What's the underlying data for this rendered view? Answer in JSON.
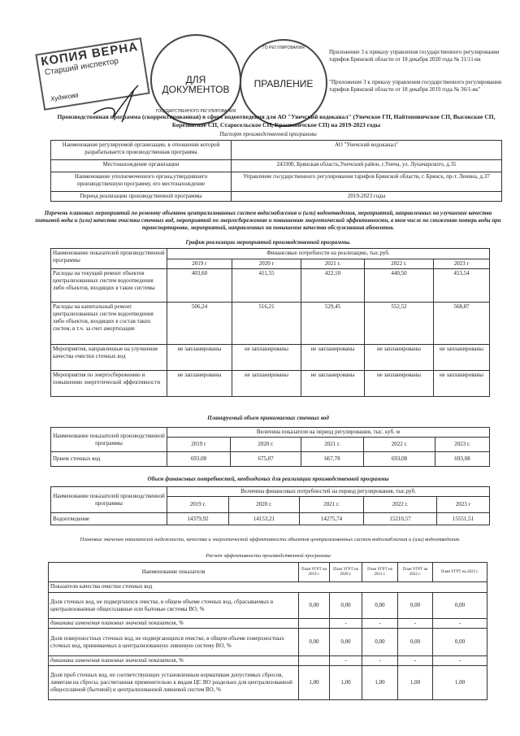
{
  "stamps": {
    "copy_stamp_line1": "КОПИЯ ВЕРНА",
    "copy_stamp_line2": "Старший инспектор",
    "copy_stamp_signature_name": "Худякова",
    "round_stamp1_text": "ДЛЯ ДОКУМЕНТОВ",
    "round_stamp1_ring": "ГОСУДАРСТВЕННОГО РЕГУЛИРОВАНИЯ",
    "round_stamp2_text": "ПРАВЛЕНИЕ",
    "round_stamp2_ring": "ГО РЕГУЛИРОВАНИЯ"
  },
  "appendix": {
    "line1": "Приложение 3 к приказу управления государственного регулирования тарифов Брянской области от 18 декабря 2020 года № 31/11-вк",
    "line2": "\"Приложение 3 к приказу управления государственного регулирования тарифов Брянской области от 18 декабря 2019 года № 36/1-вк\""
  },
  "title": "Производственная программа (скорректированная) в сфере водоотведения для АО \"Унечский водоканал\" (Унечское ГП, Найтоповичское СП, Высокское СП, Березинское СП, Старосельское СП, Красновичское СП) на 2019-2023 годы",
  "passport": {
    "caption": "Паспорт производственной программы",
    "rows": [
      {
        "label": "Наименование регулируемой организации, в отношении которой разрабатывается производственная программа",
        "value": "АО \"Унечский водоканал\""
      },
      {
        "label": "Местонахождение организации",
        "value": "243300, Брянская область,Унечский район, г.Унеча, ул. Луначарского, д.35"
      },
      {
        "label": "Наименование уполномоченного органа,утвердившего производственную программу, его местонахождение",
        "value": "Управление государственного регулирования тарифов Брянской области, г. Брянск, пр-т. Ленина, д.37"
      },
      {
        "label": "Период реализации производственной программы",
        "value": "2019-2023 годы"
      }
    ]
  },
  "measures_caption": "Перечень плановых мероприятий по ремонту объектов централизованных систем водоснабжения и (или) водоотведения, мероприятий, направленных на улучшение качества питьевой воды и (или) качества очистки сточных вод, мероприятий по энергосбережению и повышению энергетической эффективности, в том числе по снижению потерь воды при транспортировке, мероприятий, направленных на повышение качества обслуживания абонентов.",
  "schedule": {
    "caption": "График реализации мероприятий производственной программы.",
    "name_header": "Наименование показателей производственной программы",
    "group_header": "Финансовые потребности на реализацию, тыс.руб.",
    "years": [
      "2019 г",
      "2020 г",
      "2021 г.",
      "2022 г.",
      "2023 г"
    ],
    "rows": [
      {
        "label": "Расходы на текущий ремонт объектов централизованных систем водоотведения либо объектов, входящих в такие системы",
        "values": [
          "403,60",
          "411,55",
          "422,10",
          "440,50",
          "453,54"
        ]
      },
      {
        "label": "Расходы на капитальный ремонт централизованных систем водоотведения либо объектов, входящих в состав таких систем, в т.ч. за счет амортизации",
        "values": [
          "506,24",
          "516,21",
          "529,45",
          "552,52",
          "568,87"
        ]
      },
      {
        "label": "Мероприятия, направленные на улучшение качества очистки сточных вод",
        "values": [
          "не запланированы",
          "не запланированы",
          "не запланированы",
          "не запланированы",
          "не запланированы"
        ]
      },
      {
        "label": "Мероприятия по энергосбережению и повышению энергетической эффективности",
        "values": [
          "не запланированы",
          "не запланированы",
          "не запланированы",
          "не запланированы",
          "не запланированы"
        ]
      }
    ]
  },
  "volume": {
    "caption": "Планируемый объем принимаемых сточных вод",
    "name_header": "Наименование показателей производственной программы",
    "group_header": "Величина показателя на период регулирования, тыс. куб. м",
    "years": [
      "2019 г",
      "2020 г.",
      "2021 г.",
      "2022 г.",
      "2023 г."
    ],
    "row": {
      "label": "Прием сточных вод",
      "values": [
        "693,08",
        "675,07",
        "667,78",
        "693,08",
        "693,08"
      ]
    }
  },
  "finance": {
    "caption": "Объем финансовых потребностей, необходимых для реализации производственной программы",
    "name_header": "Наименование показателей производственной программы",
    "group_header": "Величина финансовых потребностей на период регулирования, тыс.руб.",
    "years": [
      "2019 г.",
      "2020 г.",
      "2021 г.",
      "2022 г.",
      "2023 г"
    ],
    "row": {
      "label": "Водоотведение",
      "values": [
        "14379,92",
        "14153,21",
        "14275,74",
        "15210,57",
        "15551,51"
      ]
    }
  },
  "indicators_note": "Плановые значения показателей надежности, качества и энергетической эффективности объектов централизованных систем водоснабжения и (или) водоотведения.",
  "efficiency_note": "Расчет эффективности производственной программы",
  "indicators": {
    "name_header": "Наименование показателя",
    "years": [
      "План УГРТ на 2019 г.",
      "План УГРТ на 2020 г.",
      "План УГРТ на 2021 г.",
      "План УГРТ на 2022 г.",
      "План УГРТ на 2023 г."
    ],
    "section": "Показатели качества очистки сточных вод",
    "rows": [
      {
        "label": "Доля сточных вод, не подвергшихся очистке, в общем объеме сточных вод, сбрасываемых в централизованные общесплавные или бытовые системы ВО, %",
        "values": [
          "0,00",
          "0,00",
          "0,00",
          "0,00",
          "0,00"
        ],
        "dynamic": false
      },
      {
        "label": "динамика изменения плановых значений показателя, %",
        "values": [
          "",
          "-",
          "-",
          "-",
          "-"
        ],
        "dynamic": true
      },
      {
        "label": "Доля поверхностных сточных вод, не подвергающихся очистке, в общем объеме поверхностных сточных вод, принимаемых в централизованную ливневую систему ВО, %",
        "values": [
          "0,00",
          "0,00",
          "0,00",
          "0,00",
          "0,00"
        ],
        "dynamic": false
      },
      {
        "label": "динамика изменения плановых значений показателя, %",
        "values": [
          "",
          "-",
          "-",
          "-",
          "-"
        ],
        "dynamic": true
      },
      {
        "label": "Доля проб сточных вод, не соответствующих установленным нормативам допустимых сбросов, лимитам на сбросы, рассчитанная применительно к видам ЦС ВО раздельно для централизованной общесплавной (бытовой) и централизованной ливневой систем ВО, %",
        "values": [
          "1,00",
          "1,00",
          "1,00",
          "1,00",
          "1,00"
        ],
        "dynamic": false
      }
    ]
  }
}
